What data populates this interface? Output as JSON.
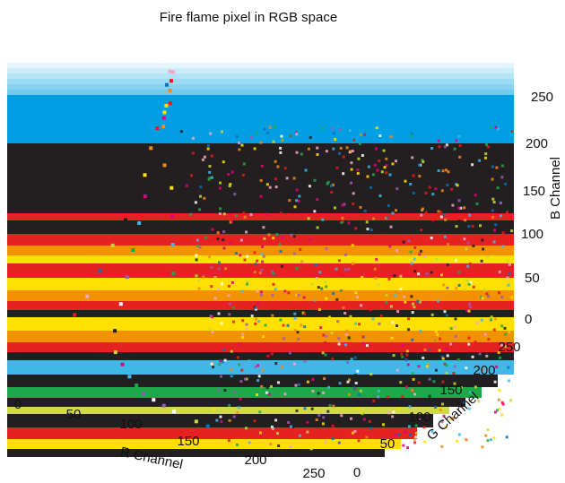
{
  "chart_data": {
    "type": "scatter",
    "projection": "3d",
    "title": "Fire flame pixel in RGB space",
    "xlabel": "R Channel",
    "ylabel": "G Channel",
    "zlabel": "B Channel",
    "xlim": [
      0,
      255
    ],
    "ylim": [
      0,
      255
    ],
    "zlim": [
      0,
      255
    ],
    "xticks": [
      "0",
      "50",
      "100",
      "150",
      "200",
      "250"
    ],
    "yticks": [
      "0",
      "50",
      "100",
      "150",
      "200",
      "250"
    ],
    "zticks": [
      "0",
      "50",
      "100",
      "150",
      "200",
      "250"
    ],
    "grid": true,
    "pane_colors": [
      "#009ee2",
      "#231f20",
      "#e52121",
      "#ffe000",
      "#f39200",
      "#1ea84a",
      "#d2d84d",
      "#e5007d",
      "#9b59b6",
      "#3fb8e8"
    ],
    "series": [
      {
        "point_colors": [
          "#e61919",
          "#f08a1c",
          "#ffe100",
          "#e5007d",
          "#3fb8e8",
          "#1ea84a",
          "#9b59b6",
          "#ffffff",
          "#1e1e1e",
          "#c5d93a",
          "#0d6fb8",
          "#f4a6c8"
        ],
        "points": [
          [
            255,
            230,
            180
          ],
          [
            255,
            220,
            160
          ],
          [
            250,
            200,
            140
          ],
          [
            245,
            190,
            120
          ],
          [
            240,
            170,
            100
          ],
          [
            235,
            150,
            80
          ],
          [
            230,
            130,
            60
          ],
          [
            225,
            110,
            40
          ],
          [
            220,
            90,
            20
          ],
          [
            210,
            70,
            10
          ],
          [
            255,
            245,
            230
          ],
          [
            255,
            250,
            245
          ],
          [
            250,
            240,
            210
          ],
          [
            248,
            225,
            190
          ],
          [
            252,
            235,
            200
          ],
          [
            200,
            60,
            5
          ],
          [
            190,
            50,
            0
          ],
          [
            180,
            40,
            0
          ],
          [
            170,
            30,
            0
          ],
          [
            160,
            25,
            0
          ],
          [
            255,
            180,
            90
          ],
          [
            255,
            160,
            70
          ],
          [
            255,
            140,
            50
          ],
          [
            255,
            120,
            30
          ],
          [
            255,
            100,
            20
          ],
          [
            240,
            210,
            150
          ],
          [
            230,
            200,
            130
          ],
          [
            220,
            180,
            110
          ],
          [
            210,
            160,
            90
          ],
          [
            200,
            140,
            70
          ],
          [
            150,
            20,
            0
          ],
          [
            140,
            15,
            0
          ],
          [
            130,
            10,
            0
          ],
          [
            120,
            8,
            0
          ],
          [
            110,
            5,
            0
          ],
          [
            255,
            255,
            240
          ],
          [
            255,
            252,
            230
          ],
          [
            254,
            248,
            220
          ],
          [
            253,
            240,
            205
          ],
          [
            251,
            232,
            195
          ]
        ]
      }
    ]
  }
}
